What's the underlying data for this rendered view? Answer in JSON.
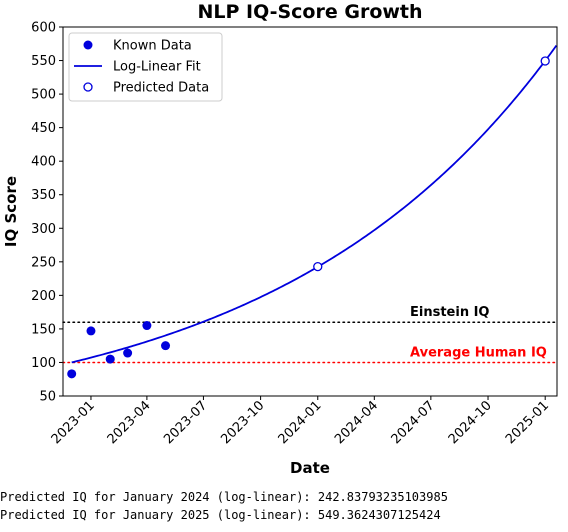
{
  "chart_data": {
    "type": "scatter",
    "title": "NLP IQ-Score Growth",
    "xlabel": "Date",
    "ylabel": "IQ Score",
    "ylim": [
      50,
      600
    ],
    "xlim": [
      "2022-11-17",
      "2025-01-20"
    ],
    "yticks": [
      50,
      100,
      150,
      200,
      250,
      300,
      350,
      400,
      450,
      500,
      550,
      600
    ],
    "xticks": [
      {
        "date": "2023-01-01",
        "label": "2023-01"
      },
      {
        "date": "2023-04-01",
        "label": "2023-04"
      },
      {
        "date": "2023-07-01",
        "label": "2023-07"
      },
      {
        "date": "2023-10-01",
        "label": "2023-10"
      },
      {
        "date": "2024-01-01",
        "label": "2024-01"
      },
      {
        "date": "2024-04-01",
        "label": "2024-04"
      },
      {
        "date": "2024-07-01",
        "label": "2024-07"
      },
      {
        "date": "2024-10-01",
        "label": "2024-10"
      },
      {
        "date": "2025-01-01",
        "label": "2025-01"
      }
    ],
    "known_data": [
      {
        "x": "2022-12-01",
        "y": 83
      },
      {
        "x": "2023-01-01",
        "y": 147
      },
      {
        "x": "2023-02-01",
        "y": 105
      },
      {
        "x": "2023-03-01",
        "y": 114
      },
      {
        "x": "2023-04-01",
        "y": 155
      },
      {
        "x": "2023-05-01",
        "y": 125
      }
    ],
    "fit": {
      "x": [
        "2022-12-01",
        "2024-01-01",
        "2025-01-01"
      ],
      "y": [
        100,
        242.83793235103985,
        549.3624307125424
      ]
    },
    "predicted_data": [
      {
        "x": "2024-01-01",
        "y": 242.83793235103985
      },
      {
        "x": "2025-01-01",
        "y": 549.3624307125424
      }
    ],
    "reference_lines": [
      {
        "label": "Einstein IQ",
        "y": 160,
        "color": "#000000"
      },
      {
        "label": "Average Human IQ",
        "y": 100,
        "color": "#ff0000"
      }
    ],
    "legend": {
      "placement": "top-left",
      "entries": [
        {
          "label": "Known Data",
          "marker": "filled-circle"
        },
        {
          "label": "Log-Linear Fit",
          "marker": "line"
        },
        {
          "label": "Predicted Data",
          "marker": "open-circle"
        }
      ]
    },
    "series_color": "#0000dd",
    "grid": false
  },
  "console": {
    "line1": "Predicted IQ for January 2024 (log-linear): 242.83793235103985",
    "line2": "Predicted IQ for January 2025 (log-linear): 549.3624307125424"
  }
}
